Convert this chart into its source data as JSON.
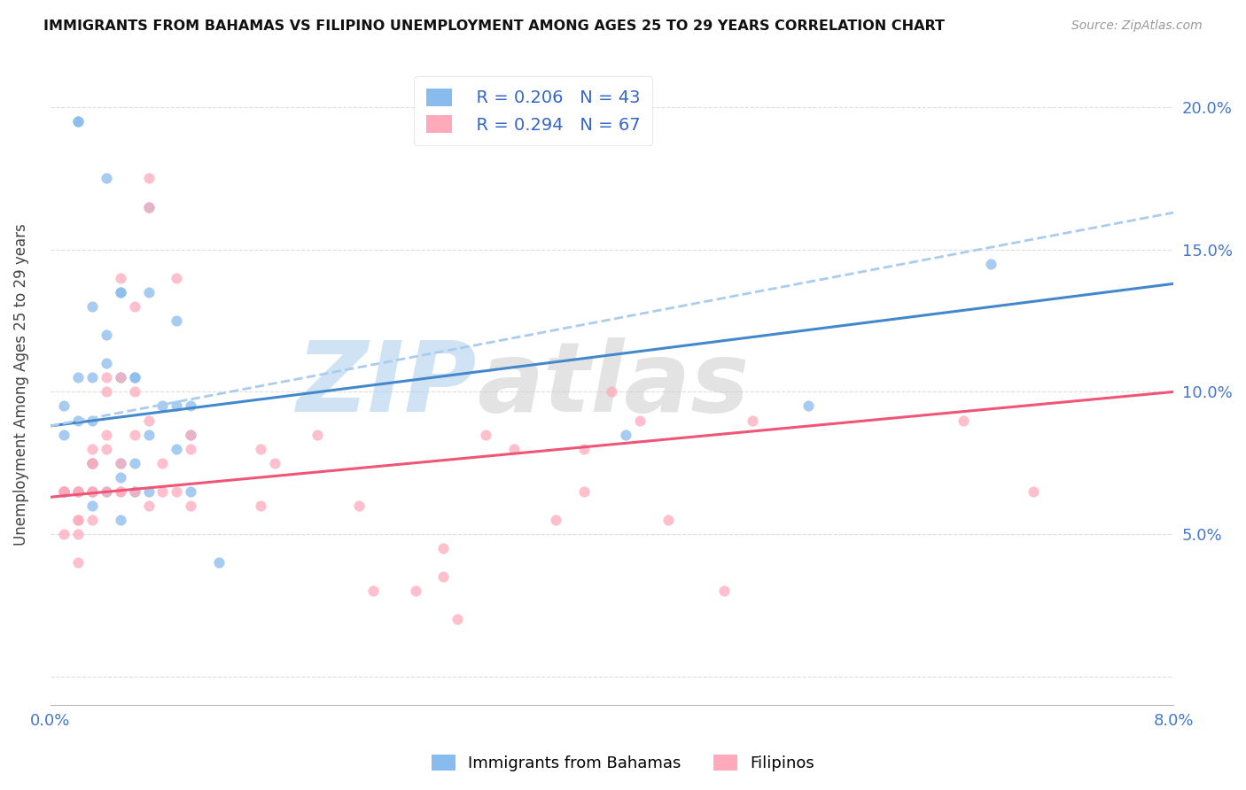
{
  "title": "IMMIGRANTS FROM BAHAMAS VS FILIPINO UNEMPLOYMENT AMONG AGES 25 TO 29 YEARS CORRELATION CHART",
  "source": "Source: ZipAtlas.com",
  "ylabel": "Unemployment Among Ages 25 to 29 years",
  "xlim": [
    0.0,
    0.08
  ],
  "ylim": [
    -0.01,
    0.215
  ],
  "legend_r1": "R = 0.206",
  "legend_n1": "N = 43",
  "legend_r2": "R = 0.294",
  "legend_n2": "N = 67",
  "label1": "Immigrants from Bahamas",
  "label2": "Filipinos",
  "color1": "#88BBEE",
  "color2": "#FFAABB",
  "line1_color": "#4488CC",
  "line2_color": "#EE5577",
  "dashed_color": "#AACCEE",
  "watermark": "ZIPatlas",
  "watermark_color": "#C8DCEE",
  "blue_scatter_x": [
    0.001,
    0.001,
    0.002,
    0.002,
    0.002,
    0.002,
    0.002,
    0.003,
    0.003,
    0.003,
    0.003,
    0.003,
    0.003,
    0.003,
    0.004,
    0.004,
    0.004,
    0.004,
    0.005,
    0.005,
    0.005,
    0.005,
    0.005,
    0.005,
    0.006,
    0.006,
    0.006,
    0.006,
    0.007,
    0.007,
    0.007,
    0.007,
    0.008,
    0.009,
    0.009,
    0.009,
    0.01,
    0.01,
    0.01,
    0.012,
    0.041,
    0.054,
    0.067
  ],
  "blue_scatter_y": [
    0.095,
    0.085,
    0.195,
    0.195,
    0.105,
    0.09,
    0.065,
    0.13,
    0.105,
    0.09,
    0.075,
    0.075,
    0.065,
    0.06,
    0.175,
    0.12,
    0.11,
    0.065,
    0.135,
    0.135,
    0.105,
    0.075,
    0.07,
    0.055,
    0.105,
    0.105,
    0.075,
    0.065,
    0.165,
    0.135,
    0.085,
    0.065,
    0.095,
    0.125,
    0.095,
    0.08,
    0.095,
    0.085,
    0.065,
    0.04,
    0.085,
    0.095,
    0.145
  ],
  "pink_scatter_x": [
    0.001,
    0.001,
    0.001,
    0.001,
    0.001,
    0.001,
    0.001,
    0.002,
    0.002,
    0.002,
    0.002,
    0.002,
    0.002,
    0.002,
    0.003,
    0.003,
    0.003,
    0.003,
    0.003,
    0.003,
    0.004,
    0.004,
    0.004,
    0.004,
    0.004,
    0.005,
    0.005,
    0.005,
    0.005,
    0.005,
    0.006,
    0.006,
    0.006,
    0.006,
    0.007,
    0.007,
    0.007,
    0.007,
    0.008,
    0.008,
    0.009,
    0.009,
    0.01,
    0.01,
    0.01,
    0.015,
    0.015,
    0.016,
    0.019,
    0.022,
    0.023,
    0.026,
    0.028,
    0.028,
    0.029,
    0.031,
    0.033,
    0.036,
    0.038,
    0.038,
    0.04,
    0.042,
    0.044,
    0.048,
    0.05,
    0.065,
    0.07
  ],
  "pink_scatter_y": [
    0.065,
    0.065,
    0.065,
    0.065,
    0.065,
    0.065,
    0.05,
    0.065,
    0.065,
    0.065,
    0.055,
    0.055,
    0.05,
    0.04,
    0.08,
    0.075,
    0.075,
    0.065,
    0.065,
    0.055,
    0.105,
    0.1,
    0.085,
    0.08,
    0.065,
    0.14,
    0.105,
    0.075,
    0.065,
    0.065,
    0.13,
    0.1,
    0.085,
    0.065,
    0.175,
    0.165,
    0.09,
    0.06,
    0.075,
    0.065,
    0.14,
    0.065,
    0.085,
    0.08,
    0.06,
    0.08,
    0.06,
    0.075,
    0.085,
    0.06,
    0.03,
    0.03,
    0.045,
    0.035,
    0.02,
    0.085,
    0.08,
    0.055,
    0.08,
    0.065,
    0.1,
    0.09,
    0.055,
    0.03,
    0.09,
    0.09,
    0.065
  ],
  "blue_line_x": [
    0.0,
    0.08
  ],
  "blue_line_y": [
    0.088,
    0.138
  ],
  "dashed_line_x": [
    0.0,
    0.08
  ],
  "dashed_line_y": [
    0.088,
    0.163
  ],
  "pink_line_x": [
    0.0,
    0.08
  ],
  "pink_line_y": [
    0.063,
    0.1
  ]
}
